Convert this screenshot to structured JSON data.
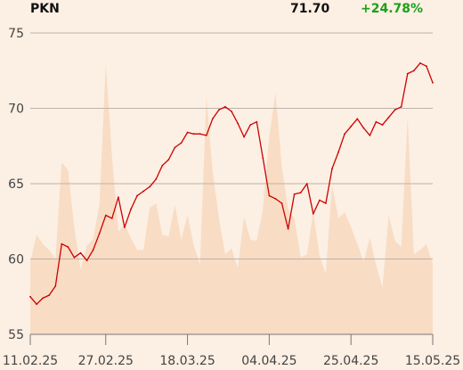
{
  "header": {
    "ticker": "PKN",
    "last_price": "71.70",
    "change": "+24.78%"
  },
  "colors": {
    "background": "#fcefe3",
    "line": "#cc0000",
    "volume_area": "#f8dcc4",
    "grid": "#bdb3aa",
    "change_positive": "#1aa01a",
    "axis_text": "#444444"
  },
  "chart_data": {
    "type": "line",
    "title": "PKN",
    "ylim": [
      55,
      76
    ],
    "yticks": [
      55,
      60,
      65,
      70,
      75
    ],
    "xtick_labels": [
      "11.02.25",
      "27.02.25",
      "18.03.25",
      "04.04.25",
      "25.04.25",
      "15.05.25"
    ],
    "xtick_index": [
      0,
      12,
      25,
      38,
      51,
      64
    ],
    "grid": true,
    "series": [
      {
        "values": [
          57.5,
          57.0,
          57.4,
          57.6,
          58.2,
          61.0,
          60.8,
          60.1,
          60.4,
          59.9,
          60.6,
          61.7,
          62.9,
          62.7,
          64.1,
          62.1,
          63.3,
          64.2,
          64.5,
          64.8,
          65.3,
          66.2,
          66.6,
          67.4,
          67.7,
          68.4,
          68.3,
          68.3,
          68.2,
          69.3,
          69.9,
          70.1,
          69.8,
          69.0,
          68.1,
          68.9,
          69.1,
          66.7,
          64.2,
          64.0,
          63.7,
          62.0,
          64.3,
          64.4,
          65.0,
          63.0,
          63.9,
          63.7,
          66.0,
          67.1,
          68.3,
          68.8,
          69.3,
          68.7,
          68.2,
          69.1,
          68.9,
          69.4,
          69.9,
          70.1,
          72.3,
          72.5,
          73.0,
          72.8,
          71.7
        ]
      }
    ],
    "volume_area": {
      "values": [
        59.8,
        61.6,
        61.0,
        60.6,
        60.0,
        66.4,
        65.9,
        62.1,
        59.3,
        60.9,
        61.3,
        63.6,
        72.9,
        66.8,
        61.8,
        62.3,
        61.4,
        60.6,
        60.6,
        63.4,
        63.7,
        61.6,
        61.5,
        63.6,
        61.3,
        62.9,
        60.9,
        59.6,
        70.8,
        65.8,
        62.7,
        60.3,
        60.7,
        59.4,
        62.8,
        61.3,
        61.2,
        63.3,
        68.1,
        71.0,
        66.1,
        63.3,
        62.7,
        60.1,
        60.3,
        63.1,
        60.2,
        59.0,
        64.9,
        62.7,
        63.1,
        62.1,
        61.0,
        59.8,
        61.4,
        59.6,
        58.1,
        62.9,
        61.2,
        60.8,
        69.4,
        60.3,
        60.6,
        61.0,
        59.7
      ]
    }
  }
}
